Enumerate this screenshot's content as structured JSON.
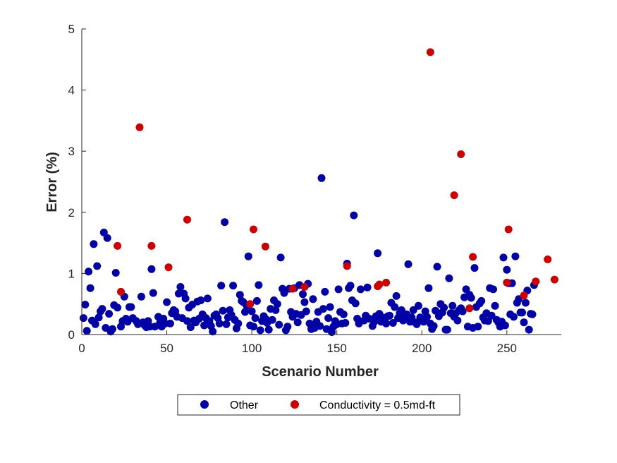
{
  "chart_data": {
    "type": "scatter",
    "title": "",
    "xlabel": "Scenario Number",
    "ylabel": "Error (%)",
    "xlim": [
      0,
      282
    ],
    "ylim": [
      0,
      5
    ],
    "xticks": [
      0,
      50,
      100,
      150,
      200,
      250
    ],
    "yticks": [
      0,
      1,
      2,
      3,
      4,
      5
    ],
    "grid": false,
    "legend_position": "bottom-outside",
    "series": [
      {
        "name": "Other",
        "color": "#0000a6",
        "points": [
          [
            1,
            0.27
          ],
          [
            2,
            0.49
          ],
          [
            3,
            0.06
          ],
          [
            4,
            1.03
          ],
          [
            5,
            0.76
          ],
          [
            6,
            0.23
          ],
          [
            7,
            1.48
          ],
          [
            8,
            0.17
          ],
          [
            9,
            1.12
          ],
          [
            10,
            0.28
          ],
          [
            11,
            0.38
          ],
          [
            12,
            0.42
          ],
          [
            13,
            1.67
          ],
          [
            14,
            0.11
          ],
          [
            15,
            1.58
          ],
          [
            16,
            0.34
          ],
          [
            17,
            0.05
          ],
          [
            18,
            0.09
          ],
          [
            19,
            0.48
          ],
          [
            20,
            1.01
          ],
          [
            21,
            0.44
          ],
          [
            23,
            0.13
          ],
          [
            24,
            0.22
          ],
          [
            25,
            0.62
          ],
          [
            26,
            0.26
          ],
          [
            27,
            0.21
          ],
          [
            28,
            0.45
          ],
          [
            29,
            0.45
          ],
          [
            30,
            0.27
          ],
          [
            32,
            0.22
          ],
          [
            33,
            0.17
          ],
          [
            35,
            0.62
          ],
          [
            36,
            0.2
          ],
          [
            37,
            0.15
          ],
          [
            38,
            0.12
          ],
          [
            39,
            0.22
          ],
          [
            40,
            0.13
          ],
          [
            41,
            1.07
          ],
          [
            42,
            0.68
          ],
          [
            43,
            0.13
          ],
          [
            45,
            0.29
          ],
          [
            46,
            0.19
          ],
          [
            47,
            0.13
          ],
          [
            48,
            0.26
          ],
          [
            49,
            0.18
          ],
          [
            50,
            0.53
          ],
          [
            52,
            0.18
          ],
          [
            53,
            0.35
          ],
          [
            54,
            0.4
          ],
          [
            55,
            0.38
          ],
          [
            56,
            0.29
          ],
          [
            57,
            0.67
          ],
          [
            58,
            0.78
          ],
          [
            59,
            0.27
          ],
          [
            60,
            0.67
          ],
          [
            61,
            0.59
          ],
          [
            62,
            0.22
          ],
          [
            63,
            0.44
          ],
          [
            64,
            0.12
          ],
          [
            65,
            0.49
          ],
          [
            66,
            0.23
          ],
          [
            67,
            0.2
          ],
          [
            68,
            0.54
          ],
          [
            69,
            0.26
          ],
          [
            70,
            0.56
          ],
          [
            71,
            0.33
          ],
          [
            72,
            0.15
          ],
          [
            73,
            0.27
          ],
          [
            74,
            0.59
          ],
          [
            75,
            0.22
          ],
          [
            76,
            0.14
          ],
          [
            77,
            0.05
          ],
          [
            78,
            0.31
          ],
          [
            79,
            0.33
          ],
          [
            80,
            0.27
          ],
          [
            81,
            0.18
          ],
          [
            82,
            0.8
          ],
          [
            83,
            0.39
          ],
          [
            84,
            1.84
          ],
          [
            85,
            0.17
          ],
          [
            86,
            0.28
          ],
          [
            87,
            0.4
          ],
          [
            88,
            0.32
          ],
          [
            89,
            0.8
          ],
          [
            90,
            0.24
          ],
          [
            91,
            0.1
          ],
          [
            92,
            0.18
          ],
          [
            93,
            0.65
          ],
          [
            94,
            0.55
          ],
          [
            95,
            0.53
          ],
          [
            96,
            0.37
          ],
          [
            97,
            0.47
          ],
          [
            98,
            1.28
          ],
          [
            99,
            0.15
          ],
          [
            100,
            0.38
          ],
          [
            101,
            0.13
          ],
          [
            102,
            0.27
          ],
          [
            103,
            0.55
          ],
          [
            104,
            0.81
          ],
          [
            105,
            0.07
          ],
          [
            106,
            0.22
          ],
          [
            107,
            0.3
          ],
          [
            108,
            0.26
          ],
          [
            109,
            0.19
          ],
          [
            110,
            0.08
          ],
          [
            111,
            0.42
          ],
          [
            112,
            0.24
          ],
          [
            113,
            0.56
          ],
          [
            114,
            0.4
          ],
          [
            115,
            0.5
          ],
          [
            116,
            0.16
          ],
          [
            117,
            1.26
          ],
          [
            118,
            0.75
          ],
          [
            119,
            0.68
          ],
          [
            120,
            0.07
          ],
          [
            121,
            0.13
          ],
          [
            122,
            0.75
          ],
          [
            123,
            0.37
          ],
          [
            124,
            0.29
          ],
          [
            125,
            0.76
          ],
          [
            126,
            0.34
          ],
          [
            127,
            0.2
          ],
          [
            128,
            0.81
          ],
          [
            129,
            0.32
          ],
          [
            130,
            0.66
          ],
          [
            131,
            0.53
          ],
          [
            132,
            0.38
          ],
          [
            133,
            0.83
          ],
          [
            134,
            0.18
          ],
          [
            135,
            0.09
          ],
          [
            136,
            0.58
          ],
          [
            137,
            0.11
          ],
          [
            138,
            0.21
          ],
          [
            139,
            0.37
          ],
          [
            140,
            0.14
          ],
          [
            141,
            2.56
          ],
          [
            142,
            0.42
          ],
          [
            143,
            0.7
          ],
          [
            144,
            0.09
          ],
          [
            145,
            0.27
          ],
          [
            146,
            0.45
          ],
          [
            147,
            0.04
          ],
          [
            148,
            0.13
          ],
          [
            149,
            0.22
          ],
          [
            150,
            0.17
          ],
          [
            151,
            0.74
          ],
          [
            152,
            0.37
          ],
          [
            153,
            0.18
          ],
          [
            154,
            0.33
          ],
          [
            155,
            0.19
          ],
          [
            156,
            1.16
          ],
          [
            157,
            0.76
          ],
          [
            158,
            0.8
          ],
          [
            159,
            0.56
          ],
          [
            160,
            1.95
          ],
          [
            161,
            0.51
          ],
          [
            162,
            0.26
          ],
          [
            163,
            0.18
          ],
          [
            164,
            0.74
          ],
          [
            166,
            0.23
          ],
          [
            167,
            0.31
          ],
          [
            168,
            0.77
          ],
          [
            169,
            0.26
          ],
          [
            171,
            0.14
          ],
          [
            172,
            0.21
          ],
          [
            173,
            0.3
          ],
          [
            174,
            1.33
          ],
          [
            175,
            0.34
          ],
          [
            176,
            0.21
          ],
          [
            177,
            0.28
          ],
          [
            178,
            0.23
          ],
          [
            179,
            0.18
          ],
          [
            180,
            0.3
          ],
          [
            181,
            0.31
          ],
          [
            182,
            0.52
          ],
          [
            183,
            0.19
          ],
          [
            184,
            0.45
          ],
          [
            185,
            0.63
          ],
          [
            186,
            0.27
          ],
          [
            187,
            0.35
          ],
          [
            188,
            0.4
          ],
          [
            189,
            0.23
          ],
          [
            190,
            0.27
          ],
          [
            191,
            0.33
          ],
          [
            192,
            1.15
          ],
          [
            193,
            0.21
          ],
          [
            194,
            0.28
          ],
          [
            195,
            0.4
          ],
          [
            196,
            0.2
          ],
          [
            197,
            0.17
          ],
          [
            198,
            0.47
          ],
          [
            199,
            0.28
          ],
          [
            200,
            0.26
          ],
          [
            201,
            0.21
          ],
          [
            202,
            0.38
          ],
          [
            203,
            0.29
          ],
          [
            204,
            0.76
          ],
          [
            205,
            0.18
          ],
          [
            206,
            0.09
          ],
          [
            207,
            0.14
          ],
          [
            208,
            0.39
          ],
          [
            209,
            1.11
          ],
          [
            210,
            0.3
          ],
          [
            211,
            0.5
          ],
          [
            212,
            0.36
          ],
          [
            213,
            0.44
          ],
          [
            214,
            0.08
          ],
          [
            215,
            0.08
          ],
          [
            216,
            0.92
          ],
          [
            217,
            0.35
          ],
          [
            218,
            0.47
          ],
          [
            219,
            0.29
          ],
          [
            220,
            0.35
          ],
          [
            221,
            0.23
          ],
          [
            222,
            0.4
          ],
          [
            223,
            0.43
          ],
          [
            224,
            0.38
          ],
          [
            225,
            0.61
          ],
          [
            226,
            0.74
          ],
          [
            227,
            0.13
          ],
          [
            228,
            0.65
          ],
          [
            229,
            0.6
          ],
          [
            230,
            0.11
          ],
          [
            231,
            1.09
          ],
          [
            232,
            0.45
          ],
          [
            233,
            0.13
          ],
          [
            234,
            0.51
          ],
          [
            235,
            0.55
          ],
          [
            236,
            0.28
          ],
          [
            237,
            0.23
          ],
          [
            238,
            0.35
          ],
          [
            239,
            0.22
          ],
          [
            240,
            0.76
          ],
          [
            241,
            0.31
          ],
          [
            242,
            0.74
          ],
          [
            243,
            0.47
          ],
          [
            244,
            0.24
          ],
          [
            245,
            0.2
          ],
          [
            246,
            0.13
          ],
          [
            247,
            0.21
          ],
          [
            248,
            1.26
          ],
          [
            249,
            0.15
          ],
          [
            250,
            1.06
          ],
          [
            251,
            0.84
          ],
          [
            252,
            0.33
          ],
          [
            253,
            0.84
          ],
          [
            254,
            0.29
          ],
          [
            255,
            1.28
          ],
          [
            256,
            0.52
          ],
          [
            257,
            0.58
          ],
          [
            258,
            0.36
          ],
          [
            259,
            0.36
          ],
          [
            260,
            0.2
          ],
          [
            261,
            0.52
          ],
          [
            262,
            0.72
          ],
          [
            263,
            0.08
          ],
          [
            264,
            0.34
          ],
          [
            265,
            0.33
          ],
          [
            266,
            0.81
          ]
        ]
      },
      {
        "name": "Conductivity = 0.5md-ft",
        "color": "#cc0000",
        "points": [
          [
            21,
            1.45
          ],
          [
            23,
            0.7
          ],
          [
            34,
            3.39
          ],
          [
            41,
            1.45
          ],
          [
            51,
            1.1
          ],
          [
            62,
            1.88
          ],
          [
            99,
            0.5
          ],
          [
            101,
            1.72
          ],
          [
            108,
            1.44
          ],
          [
            124,
            0.75
          ],
          [
            131,
            0.78
          ],
          [
            156,
            1.12
          ],
          [
            174,
            0.79
          ],
          [
            175,
            0.82
          ],
          [
            179,
            0.85
          ],
          [
            205,
            4.62
          ],
          [
            219,
            2.28
          ],
          [
            223,
            2.95
          ],
          [
            228,
            0.43
          ],
          [
            230,
            1.27
          ],
          [
            250,
            0.85
          ],
          [
            251,
            1.72
          ],
          [
            260,
            0.64
          ],
          [
            267,
            0.87
          ],
          [
            274,
            1.23
          ],
          [
            278,
            0.9
          ]
        ]
      }
    ]
  }
}
